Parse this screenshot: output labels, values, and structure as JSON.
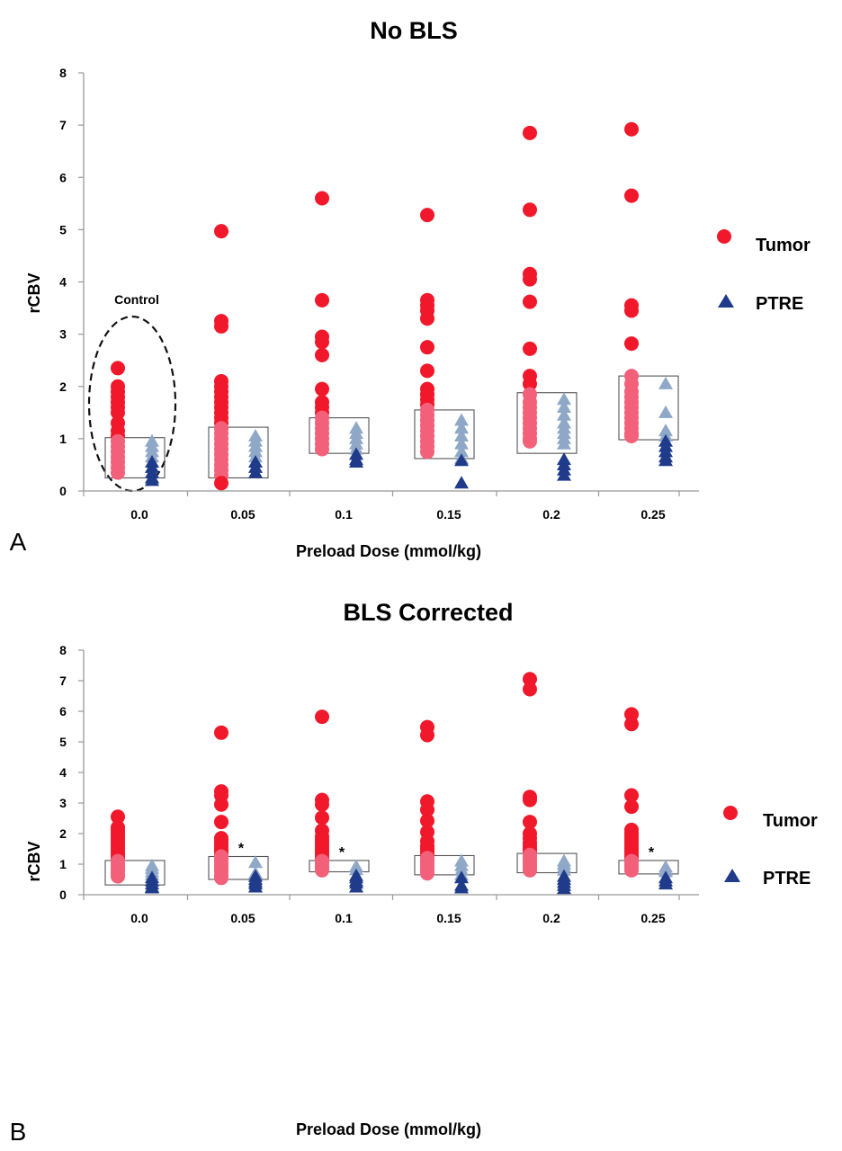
{
  "colors": {
    "tumor": "#f0182a",
    "tumor_light": "#f2607a",
    "ptre_light": "#8fa8c8",
    "ptre_dark": "#1f3b8a",
    "axis": "#999999",
    "box": "#555555"
  },
  "chart_data": [
    {
      "type": "scatter",
      "title": "No BLS",
      "panel_letter": "A",
      "xlabel": "Preload Dose (mmol/kg)",
      "ylabel": "rCBV",
      "ylim": [
        0,
        8
      ],
      "yticks": [
        "0",
        "1",
        "2",
        "3",
        "4",
        "5",
        "6",
        "7",
        "8"
      ],
      "categories": [
        "0.0",
        "0.05",
        "0.1",
        "0.15",
        "0.2",
        "0.25"
      ],
      "legend": {
        "placement": "right",
        "tumor": "Tumor",
        "ptre": "PTRE"
      },
      "annotation": "Control",
      "series": [
        {
          "name": "Tumor",
          "values": [
            [
              2.35,
              2.0,
              1.9,
              1.8,
              1.7,
              1.6,
              1.5,
              1.3,
              1.15,
              1.05,
              0.95,
              0.85,
              0.75,
              0.65,
              0.55,
              0.45,
              0.35
            ],
            [
              4.97,
              3.25,
              3.15,
              2.1,
              2.0,
              1.9,
              1.8,
              1.7,
              1.6,
              1.5,
              1.4,
              1.3,
              1.2,
              1.1,
              1.0,
              0.9,
              0.8,
              0.7,
              0.6,
              0.5,
              0.4,
              0.3,
              0.15
            ],
            [
              5.6,
              3.65,
              2.95,
              2.85,
              2.6,
              1.95,
              1.7,
              1.6,
              1.5,
              1.4,
              1.3,
              1.2,
              1.1,
              1.0,
              0.9,
              0.8
            ],
            [
              5.28,
              3.65,
              3.55,
              3.45,
              3.3,
              2.75,
              2.3,
              1.95,
              1.85,
              1.75,
              1.65,
              1.55,
              1.45,
              1.35,
              1.25,
              1.15,
              1.05,
              0.95,
              0.85,
              0.75
            ],
            [
              6.85,
              5.38,
              4.15,
              4.05,
              3.62,
              2.72,
              2.2,
              2.05,
              1.85,
              1.7,
              1.6,
              1.5,
              1.4,
              1.3,
              1.2,
              1.1,
              1.0,
              0.95
            ],
            [
              6.92,
              5.65,
              3.55,
              3.45,
              2.82,
              2.2,
              2.05,
              1.9,
              1.8,
              1.7,
              1.6,
              1.5,
              1.4,
              1.3,
              1.2,
              1.1,
              1.05
            ]
          ]
        },
        {
          "name": "PTRE",
          "values": [
            [
              0.95,
              0.85,
              0.75,
              0.65,
              0.55,
              0.45,
              0.35,
              0.25,
              0.2
            ],
            [
              1.05,
              0.95,
              0.85,
              0.75,
              0.65,
              0.55,
              0.45,
              0.35
            ],
            [
              1.2,
              1.1,
              1.0,
              0.9,
              0.8,
              0.7,
              0.6,
              0.55
            ],
            [
              1.35,
              1.2,
              1.05,
              0.9,
              0.75,
              0.62,
              0.58,
              0.15
            ],
            [
              1.75,
              1.6,
              1.45,
              1.3,
              1.2,
              1.1,
              1.0,
              0.9,
              0.6,
              0.5,
              0.4,
              0.3
            ],
            [
              2.05,
              1.5,
              1.15,
              1.05,
              0.95,
              0.85,
              0.75,
              0.65,
              0.58
            ]
          ]
        }
      ],
      "boxes": [
        [
          0.25,
          1.02
        ],
        [
          0.25,
          1.22
        ],
        [
          0.72,
          1.4
        ],
        [
          0.62,
          1.55
        ],
        [
          0.72,
          1.88
        ],
        [
          0.98,
          2.2
        ]
      ]
    },
    {
      "type": "scatter",
      "title": "BLS Corrected",
      "panel_letter": "B",
      "xlabel": "Preload Dose (mmol/kg)",
      "ylabel": "rCBV",
      "ylim": [
        0,
        8
      ],
      "yticks": [
        "0",
        "1",
        "2",
        "3",
        "4",
        "5",
        "6",
        "7",
        "8"
      ],
      "categories": [
        "0.0",
        "0.05",
        "0.1",
        "0.15",
        "0.2",
        "0.25"
      ],
      "legend": {
        "placement": "right",
        "tumor": "Tumor",
        "ptre": "PTRE"
      },
      "stars": [
        false,
        true,
        true,
        false,
        false,
        true
      ],
      "star_symbol": "*",
      "series": [
        {
          "name": "Tumor",
          "values": [
            [
              2.55,
              2.2,
              2.1,
              2.0,
              1.9,
              1.8,
              1.7,
              1.6,
              1.5,
              1.4,
              1.3,
              1.2,
              1.1,
              1.0,
              0.9,
              0.8,
              0.7,
              0.6
            ],
            [
              5.3,
              3.38,
              3.25,
              2.95,
              2.38,
              1.85,
              1.75,
              1.65,
              1.55,
              1.45,
              1.35,
              1.25,
              1.15,
              1.05,
              0.95,
              0.85,
              0.75,
              0.62,
              0.55
            ],
            [
              5.82,
              3.1,
              2.95,
              2.52,
              2.1,
              1.9,
              1.8,
              1.7,
              1.6,
              1.5,
              1.4,
              1.3,
              1.2,
              1.1,
              1.0,
              0.9,
              0.8
            ],
            [
              5.48,
              5.22,
              3.05,
              2.78,
              2.42,
              2.05,
              1.75,
              1.6,
              1.5,
              1.4,
              1.3,
              1.2,
              1.1,
              1.0,
              0.9,
              0.8,
              0.7
            ],
            [
              7.05,
              6.72,
              3.2,
              3.1,
              2.38,
              2.0,
              1.85,
              1.7,
              1.6,
              1.5,
              1.4,
              1.3,
              1.2,
              1.1,
              1.0,
              0.9,
              0.8
            ],
            [
              5.9,
              5.58,
              3.25,
              2.88,
              2.12,
              2.0,
              1.9,
              1.8,
              1.7,
              1.6,
              1.5,
              1.4,
              1.3,
              1.2,
              1.1,
              1.0,
              0.9,
              0.8
            ]
          ]
        },
        {
          "name": "PTRE",
          "values": [
            [
              0.95,
              0.85,
              0.75,
              0.65,
              0.55,
              0.45,
              0.35,
              0.25,
              0.22
            ],
            [
              1.05,
              0.7,
              0.6,
              0.5,
              0.42,
              0.35,
              0.25
            ],
            [
              0.92,
              0.82,
              0.62,
              0.55,
              0.45,
              0.38,
              0.25
            ],
            [
              1.1,
              0.95,
              0.8,
              0.65,
              0.55,
              0.3,
              0.22
            ],
            [
              1.1,
              1.0,
              0.9,
              0.8,
              0.6,
              0.5,
              0.4,
              0.3,
              0.2
            ],
            [
              0.9,
              0.8,
              0.75,
              0.55,
              0.45,
              0.35
            ]
          ]
        }
      ],
      "boxes": [
        [
          0.32,
          1.12
        ],
        [
          0.5,
          1.25
        ],
        [
          0.75,
          1.12
        ],
        [
          0.65,
          1.28
        ],
        [
          0.72,
          1.35
        ],
        [
          0.68,
          1.12
        ]
      ]
    }
  ]
}
